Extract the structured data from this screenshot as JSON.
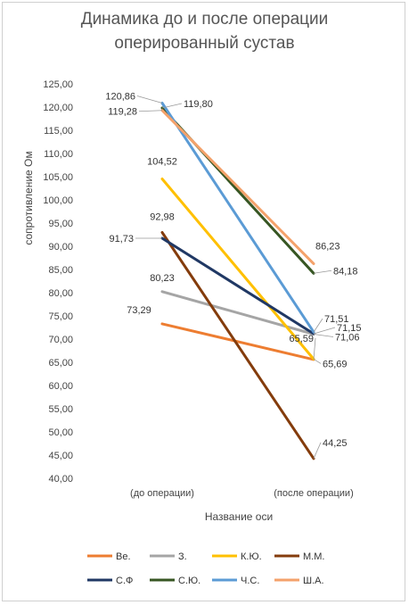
{
  "chart_data": {
    "type": "line",
    "title_line1": "Динамика до и после операции",
    "title_line2": "оперированный сустав",
    "xlabel": "Название оси",
    "ylabel": "сопротивление  Ом",
    "categories": [
      "(до операции)",
      "(после операции)"
    ],
    "ylim": [
      40,
      125
    ],
    "ytick_step": 5,
    "ytick_labels": [
      "40,00",
      "45,00",
      "50,00",
      "55,00",
      "60,00",
      "65,00",
      "70,00",
      "75,00",
      "80,00",
      "85,00",
      "90,00",
      "95,00",
      "100,00",
      "105,00",
      "110,00",
      "115,00",
      "120,00",
      "125,00"
    ],
    "grid": false,
    "legend_position": "bottom",
    "series": [
      {
        "name": "Ве.",
        "color": "#ED7D31",
        "values": [
          73.29,
          65.59
        ],
        "labels": [
          "73,29",
          "65,59"
        ]
      },
      {
        "name": "З.",
        "color": "#A5A5A5",
        "values": [
          80.23,
          71.06
        ],
        "labels": [
          "80,23",
          "71,06"
        ]
      },
      {
        "name": "К.Ю.",
        "color": "#FFC000",
        "values": [
          104.52,
          65.69
        ],
        "labels": [
          "104,52",
          "65,69"
        ]
      },
      {
        "name": "М.М.",
        "color": "#843C0C",
        "values": [
          92.98,
          44.25
        ],
        "labels": [
          "92,98",
          "44,25"
        ]
      },
      {
        "name": "С.Ф",
        "color": "#203864",
        "values": [
          91.73,
          71.15
        ],
        "labels": [
          "91,73",
          "71,15"
        ]
      },
      {
        "name": "С.Ю.",
        "color": "#375623",
        "values": [
          119.8,
          84.18
        ],
        "labels": [
          "119,80",
          "84,18"
        ]
      },
      {
        "name": "Ч.С.",
        "color": "#5B9BD5",
        "values": [
          120.86,
          71.51
        ],
        "labels": [
          "120,86",
          "71,51"
        ]
      },
      {
        "name": "Ш.А.",
        "color": "#F4A26B",
        "values": [
          119.28,
          86.23
        ],
        "labels": [
          "119,28",
          "86,23"
        ]
      }
    ]
  }
}
